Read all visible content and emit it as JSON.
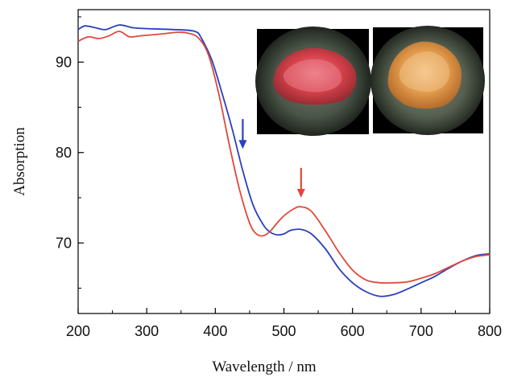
{
  "chart_data": {
    "type": "line",
    "title": "",
    "xlabel": "Wavelength / nm",
    "ylabel": "Absorption",
    "xlim": [
      200,
      800
    ],
    "ylim": [
      62.2,
      95.8
    ],
    "x_ticks": [
      200,
      300,
      400,
      500,
      600,
      700,
      800
    ],
    "y_ticks": [
      70,
      80,
      90
    ],
    "grid": false,
    "legend": "none",
    "series": [
      {
        "color": "#2b3fbf",
        "x": [
          200,
          210,
          225,
          240,
          260,
          280,
          300,
          340,
          370,
          380,
          395,
          410,
          425,
          440,
          455,
          470,
          480,
          490,
          500,
          510,
          525,
          540,
          560,
          580,
          600,
          620,
          640,
          660,
          680,
          700,
          720,
          740,
          760,
          780,
          800
        ],
        "y": [
          93.6,
          94.0,
          93.8,
          93.6,
          94.1,
          93.8,
          93.7,
          93.6,
          93.4,
          92.6,
          90.2,
          86.5,
          82.5,
          78.0,
          74.2,
          72.0,
          71.2,
          70.9,
          71.0,
          71.4,
          71.5,
          71.0,
          69.4,
          67.2,
          65.6,
          64.6,
          64.1,
          64.3,
          64.9,
          65.6,
          66.3,
          67.2,
          68.0,
          68.6,
          68.8
        ]
      },
      {
        "color": "#e0483a",
        "x": [
          200,
          215,
          230,
          245,
          260,
          275,
          290,
          320,
          345,
          360,
          375,
          390,
          405,
          420,
          435,
          450,
          460,
          470,
          480,
          490,
          500,
          515,
          525,
          540,
          560,
          580,
          600,
          620,
          640,
          660,
          680,
          700,
          720,
          740,
          760,
          780,
          800
        ],
        "y": [
          92.3,
          92.8,
          92.6,
          92.9,
          93.4,
          92.8,
          92.9,
          93.1,
          93.3,
          93.2,
          92.7,
          90.8,
          86.5,
          81.0,
          76.0,
          72.2,
          71.0,
          70.8,
          71.3,
          72.2,
          73.0,
          73.8,
          74.0,
          73.5,
          71.4,
          69.0,
          67.0,
          65.9,
          65.6,
          65.6,
          65.7,
          66.1,
          66.6,
          67.3,
          68.0,
          68.5,
          68.7
        ]
      }
    ],
    "annotations": [
      {
        "type": "arrow",
        "color": "#2b3fbf",
        "x": 440,
        "y_from": 83.7,
        "y_to": 80.4
      },
      {
        "type": "arrow",
        "color": "#e0483a",
        "x": 525,
        "y_from": 78.3,
        "y_to": 75.0
      }
    ]
  },
  "inset_photos": [
    {
      "name": "red-crystal-photo",
      "subject_color": "#d4404a"
    },
    {
      "name": "orange-crystal-photo",
      "subject_color": "#e0984a"
    }
  ]
}
